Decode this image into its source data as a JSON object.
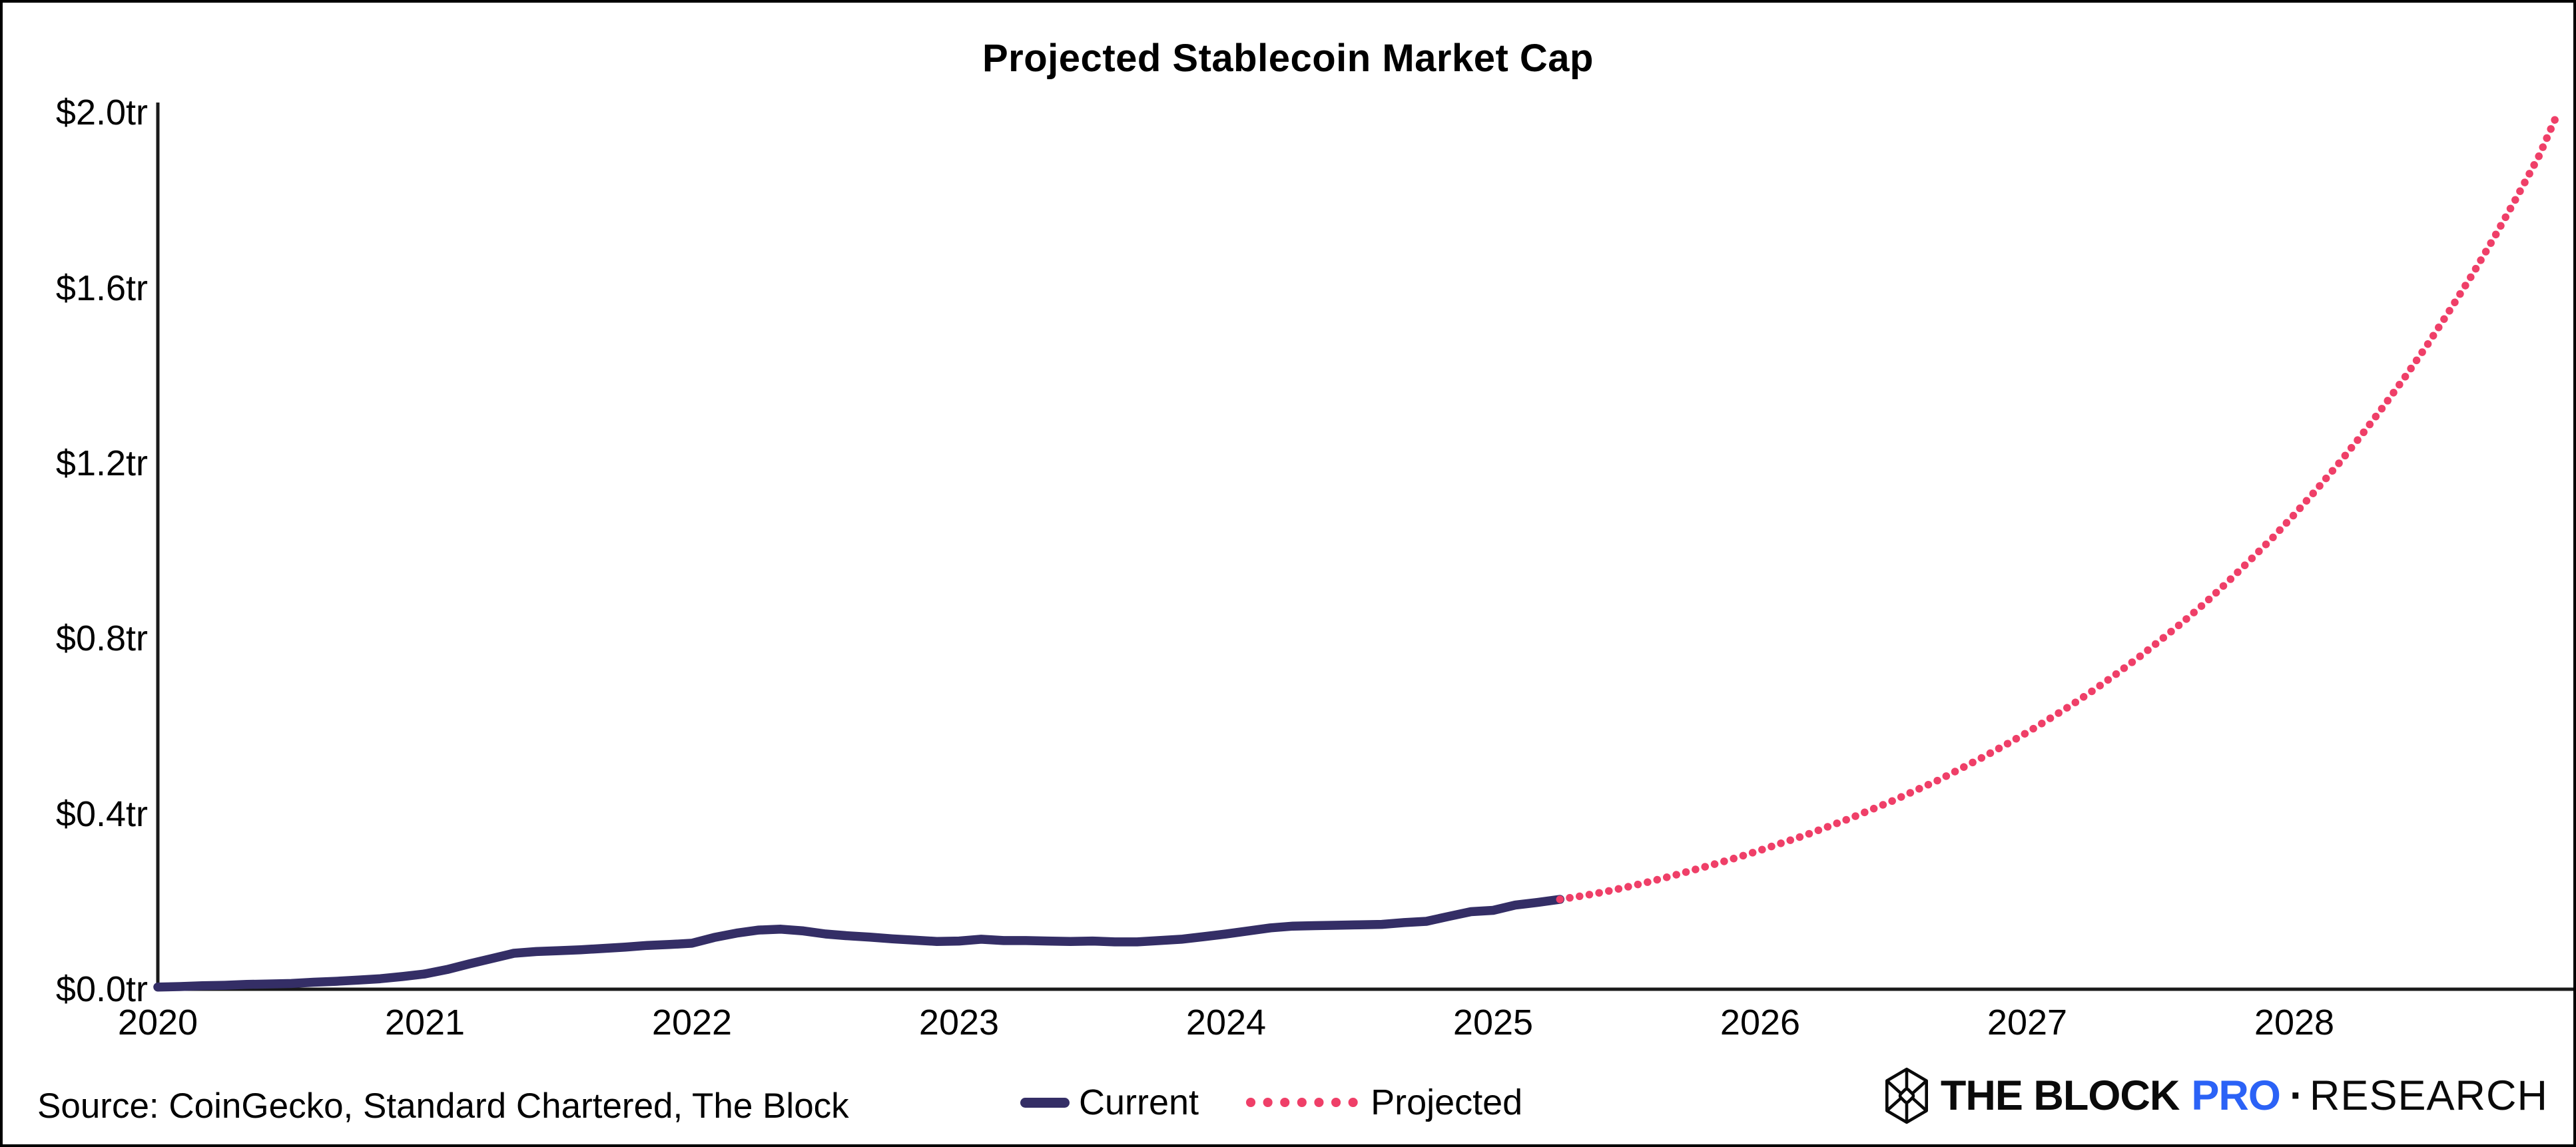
{
  "frame": {
    "border_color": "#000000",
    "background": "#ffffff"
  },
  "chart_data": {
    "type": "line",
    "title": "Projected Stablecoin Market Cap",
    "xlabel": "",
    "ylabel": "",
    "unit": "trillion USD",
    "x_range": [
      2020,
      2029
    ],
    "ylim": [
      0,
      2.0
    ],
    "grid": false,
    "legend_position": "bottom-center",
    "axis_color": "#1a1a1a",
    "y_ticks": [
      {
        "value": 0.0,
        "label": "$0.0tr"
      },
      {
        "value": 0.4,
        "label": "$0.4tr"
      },
      {
        "value": 0.8,
        "label": "$0.8tr"
      },
      {
        "value": 1.2,
        "label": "$1.2tr"
      },
      {
        "value": 1.6,
        "label": "$1.6tr"
      },
      {
        "value": 2.0,
        "label": "$2.0tr"
      }
    ],
    "x_ticks": [
      {
        "value": 2020,
        "label": "2020"
      },
      {
        "value": 2021,
        "label": "2021"
      },
      {
        "value": 2022,
        "label": "2022"
      },
      {
        "value": 2023,
        "label": "2023"
      },
      {
        "value": 2024,
        "label": "2024"
      },
      {
        "value": 2025,
        "label": "2025"
      },
      {
        "value": 2026,
        "label": "2026"
      },
      {
        "value": 2027,
        "label": "2027"
      },
      {
        "value": 2028,
        "label": "2028"
      }
    ],
    "series": [
      {
        "name": "Current",
        "style": "solid",
        "color": "#342e66",
        "points": [
          [
            2020.0,
            0.005
          ],
          [
            2020.083,
            0.006
          ],
          [
            2020.167,
            0.008
          ],
          [
            2020.25,
            0.009
          ],
          [
            2020.333,
            0.011
          ],
          [
            2020.417,
            0.012
          ],
          [
            2020.5,
            0.013
          ],
          [
            2020.583,
            0.016
          ],
          [
            2020.667,
            0.018
          ],
          [
            2020.75,
            0.021
          ],
          [
            2020.833,
            0.024
          ],
          [
            2020.917,
            0.029
          ],
          [
            2021.0,
            0.035
          ],
          [
            2021.083,
            0.045
          ],
          [
            2021.167,
            0.058
          ],
          [
            2021.25,
            0.07
          ],
          [
            2021.333,
            0.082
          ],
          [
            2021.417,
            0.086
          ],
          [
            2021.5,
            0.088
          ],
          [
            2021.583,
            0.09
          ],
          [
            2021.667,
            0.093
          ],
          [
            2021.75,
            0.096
          ],
          [
            2021.833,
            0.1
          ],
          [
            2021.917,
            0.102
          ],
          [
            2022.0,
            0.105
          ],
          [
            2022.083,
            0.118
          ],
          [
            2022.167,
            0.128
          ],
          [
            2022.25,
            0.135
          ],
          [
            2022.333,
            0.137
          ],
          [
            2022.417,
            0.133
          ],
          [
            2022.5,
            0.126
          ],
          [
            2022.583,
            0.122
          ],
          [
            2022.667,
            0.119
          ],
          [
            2022.75,
            0.115
          ],
          [
            2022.833,
            0.112
          ],
          [
            2022.917,
            0.109
          ],
          [
            2023.0,
            0.11
          ],
          [
            2023.083,
            0.114
          ],
          [
            2023.167,
            0.111
          ],
          [
            2023.25,
            0.111
          ],
          [
            2023.333,
            0.11
          ],
          [
            2023.417,
            0.109
          ],
          [
            2023.5,
            0.11
          ],
          [
            2023.583,
            0.108
          ],
          [
            2023.667,
            0.108
          ],
          [
            2023.75,
            0.111
          ],
          [
            2023.833,
            0.114
          ],
          [
            2023.917,
            0.12
          ],
          [
            2024.0,
            0.126
          ],
          [
            2024.083,
            0.133
          ],
          [
            2024.167,
            0.14
          ],
          [
            2024.25,
            0.144
          ],
          [
            2024.333,
            0.145
          ],
          [
            2024.417,
            0.146
          ],
          [
            2024.5,
            0.147
          ],
          [
            2024.583,
            0.148
          ],
          [
            2024.667,
            0.152
          ],
          [
            2024.75,
            0.155
          ],
          [
            2024.833,
            0.166
          ],
          [
            2024.917,
            0.177
          ],
          [
            2025.0,
            0.18
          ],
          [
            2025.083,
            0.192
          ],
          [
            2025.167,
            0.198
          ],
          [
            2025.25,
            0.205
          ]
        ]
      },
      {
        "name": "Projected",
        "style": "dotted",
        "color": "#ef3f68",
        "points": [
          [
            2025.25,
            0.205
          ],
          [
            2025.333,
            0.213
          ],
          [
            2025.417,
            0.222
          ],
          [
            2025.5,
            0.233
          ],
          [
            2025.583,
            0.245
          ],
          [
            2025.667,
            0.258
          ],
          [
            2025.75,
            0.272
          ],
          [
            2025.833,
            0.286
          ],
          [
            2025.917,
            0.301
          ],
          [
            2026.0,
            0.317
          ],
          [
            2026.083,
            0.334
          ],
          [
            2026.167,
            0.351
          ],
          [
            2026.25,
            0.37
          ],
          [
            2026.333,
            0.389
          ],
          [
            2026.417,
            0.41
          ],
          [
            2026.5,
            0.431
          ],
          [
            2026.583,
            0.454
          ],
          [
            2026.667,
            0.477
          ],
          [
            2026.75,
            0.503
          ],
          [
            2026.833,
            0.529
          ],
          [
            2026.917,
            0.557
          ],
          [
            2027.0,
            0.586
          ],
          [
            2027.083,
            0.617
          ],
          [
            2027.167,
            0.649
          ],
          [
            2027.25,
            0.683
          ],
          [
            2027.333,
            0.719
          ],
          [
            2027.417,
            0.757
          ],
          [
            2027.5,
            0.797
          ],
          [
            2027.583,
            0.838
          ],
          [
            2027.667,
            0.882
          ],
          [
            2027.75,
            0.929
          ],
          [
            2027.833,
            0.978
          ],
          [
            2027.917,
            1.029
          ],
          [
            2028.0,
            1.083
          ],
          [
            2028.083,
            1.14
          ],
          [
            2028.167,
            1.2
          ],
          [
            2028.25,
            1.263
          ],
          [
            2028.333,
            1.329
          ],
          [
            2028.417,
            1.399
          ],
          [
            2028.5,
            1.472
          ],
          [
            2028.583,
            1.55
          ],
          [
            2028.667,
            1.631
          ],
          [
            2028.75,
            1.717
          ],
          [
            2028.833,
            1.807
          ],
          [
            2028.917,
            1.902
          ],
          [
            2028.98,
            1.99
          ]
        ]
      }
    ]
  },
  "footer": {
    "source": "Source: CoinGecko, Standard Chartered, The Block",
    "logo": {
      "the_block": "THE BLOCK",
      "pro": "PRO",
      "sep": "·",
      "research": "RESEARCH",
      "pro_color": "#2b62f6",
      "text_color": "#0a0a0a"
    }
  }
}
